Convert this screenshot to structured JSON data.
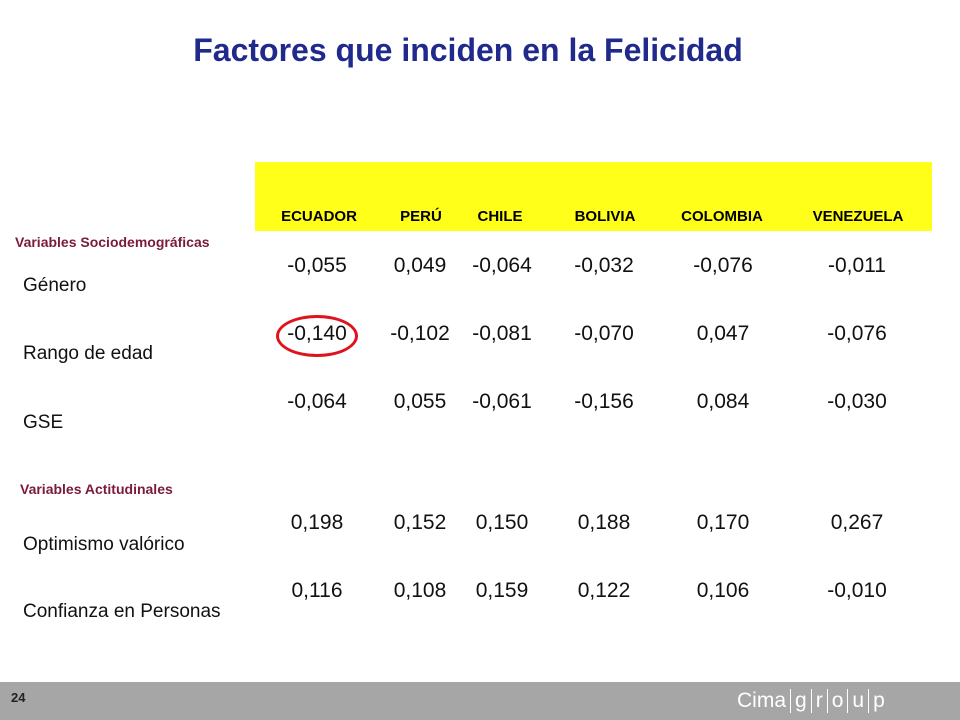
{
  "title": "Factores que inciden en la Felicidad",
  "columns": [
    "ECUADOR",
    "PERÚ",
    "CHILE",
    "BOLIVIA",
    "COLOMBIA",
    "VENEZUELA"
  ],
  "sections": [
    {
      "label": "Variables Sociodemográficas",
      "rows": [
        {
          "label": "Género",
          "values": [
            "-0,055",
            "0,049",
            "-0,064",
            "-0,032",
            "-0,076",
            "-0,011"
          ]
        },
        {
          "label": "Rango de edad",
          "values": [
            "-0,140",
            "-0,102",
            "-0,081",
            "-0,070",
            "0,047",
            "-0,076"
          ],
          "highlight_index": 0
        },
        {
          "label": "GSE",
          "values": [
            "-0,064",
            "0,055",
            "-0,061",
            "-0,156",
            "0,084",
            "-0,030"
          ]
        }
      ]
    },
    {
      "label": "Variables Actitudinales",
      "rows": [
        {
          "label": "Optimismo valórico",
          "values": [
            "0,198",
            "0,152",
            "0,150",
            "0,188",
            "0,170",
            "0,267"
          ]
        },
        {
          "label": "Confianza en Personas",
          "values": [
            "0,116",
            "0,108",
            "0,159",
            "0,122",
            "0,106",
            "-0,010"
          ]
        }
      ]
    }
  ],
  "footer": {
    "page_number": "24",
    "logo": {
      "brand": "Cima",
      "letters": [
        "g",
        "r",
        "o",
        "u",
        "p"
      ]
    }
  },
  "colors": {
    "title": "#1f2a8c",
    "header_band": "#ffff1a",
    "section_label": "#7a1a3d",
    "highlight_ring": "#e0121d",
    "footer_bar": "#a6a6a6"
  }
}
